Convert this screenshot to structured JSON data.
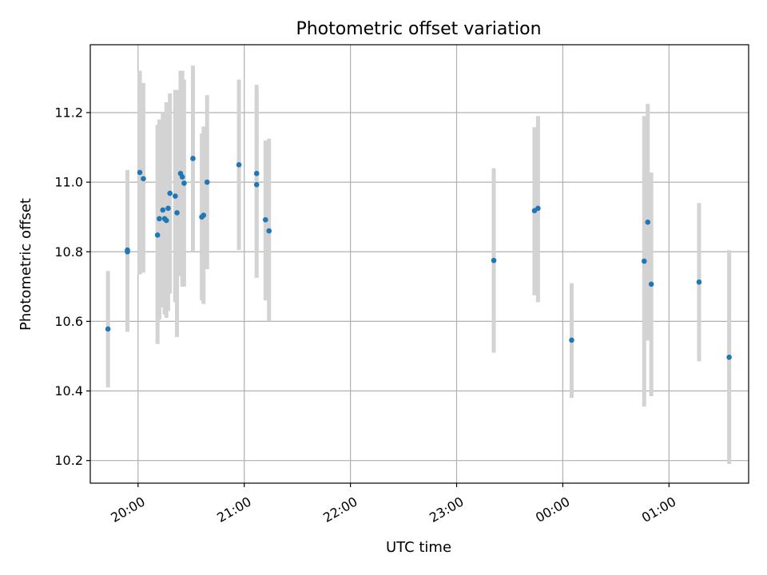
{
  "chart_data": {
    "type": "scatter",
    "title": "Photometric offset variation",
    "xlabel": "UTC time",
    "ylabel": "Photometric offset",
    "xlim": [
      "19:33",
      "01:45"
    ],
    "ylim": [
      10.135,
      11.395
    ],
    "x_ticks": [
      "20:00",
      "21:00",
      "22:00",
      "23:00",
      "00:00",
      "01:00"
    ],
    "y_ticks": [
      10.2,
      10.4,
      10.6,
      10.8,
      11.0,
      11.2
    ],
    "grid": true,
    "colors": {
      "point": "#1f77b4",
      "error_bar": "#d3d3d3"
    },
    "points": [
      {
        "x": "19:43",
        "y": 10.578,
        "lo": 10.41,
        "hi": 10.745
      },
      {
        "x": "19:54",
        "y": 10.8,
        "lo": 10.57,
        "hi": 11.03
      },
      {
        "x": "19:54",
        "y": 10.805,
        "lo": 10.58,
        "hi": 11.035
      },
      {
        "x": "20:01",
        "y": 11.028,
        "lo": 10.735,
        "hi": 11.32
      },
      {
        "x": "20:03",
        "y": 11.01,
        "lo": 10.74,
        "hi": 11.285
      },
      {
        "x": "20:11",
        "y": 10.848,
        "lo": 10.535,
        "hi": 11.165
      },
      {
        "x": "20:12",
        "y": 10.895,
        "lo": 10.605,
        "hi": 11.18
      },
      {
        "x": "20:14",
        "y": 10.92,
        "lo": 10.64,
        "hi": 11.2
      },
      {
        "x": "20:15",
        "y": 10.895,
        "lo": 10.62,
        "hi": 11.175
      },
      {
        "x": "20:16",
        "y": 10.89,
        "lo": 10.61,
        "hi": 11.23
      },
      {
        "x": "20:17",
        "y": 10.925,
        "lo": 10.63,
        "hi": 11.215
      },
      {
        "x": "20:18",
        "y": 10.968,
        "lo": 10.68,
        "hi": 11.255
      },
      {
        "x": "20:21",
        "y": 10.96,
        "lo": 10.655,
        "hi": 11.265
      },
      {
        "x": "20:22",
        "y": 10.912,
        "lo": 10.555,
        "hi": 11.265
      },
      {
        "x": "20:24",
        "y": 11.025,
        "lo": 10.73,
        "hi": 11.32
      },
      {
        "x": "20:25",
        "y": 11.015,
        "lo": 10.7,
        "hi": 11.32
      },
      {
        "x": "20:26",
        "y": 10.997,
        "lo": 10.7,
        "hi": 11.295
      },
      {
        "x": "20:31",
        "y": 11.068,
        "lo": 10.8,
        "hi": 11.335
      },
      {
        "x": "20:36",
        "y": 10.9,
        "lo": 10.66,
        "hi": 11.14
      },
      {
        "x": "20:37",
        "y": 10.905,
        "lo": 10.65,
        "hi": 11.16
      },
      {
        "x": "20:39",
        "y": 11.0,
        "lo": 10.75,
        "hi": 11.25
      },
      {
        "x": "20:57",
        "y": 11.05,
        "lo": 10.805,
        "hi": 11.295
      },
      {
        "x": "21:07",
        "y": 11.025,
        "lo": 10.8,
        "hi": 11.28
      },
      {
        "x": "21:07",
        "y": 10.993,
        "lo": 10.725,
        "hi": 11.26
      },
      {
        "x": "21:12",
        "y": 10.892,
        "lo": 10.66,
        "hi": 11.12
      },
      {
        "x": "21:14",
        "y": 10.86,
        "lo": 10.6,
        "hi": 11.125
      },
      {
        "x": "23:21",
        "y": 10.775,
        "lo": 10.51,
        "hi": 11.04
      },
      {
        "x": "23:44",
        "y": 10.918,
        "lo": 10.675,
        "hi": 11.158
      },
      {
        "x": "23:46",
        "y": 10.925,
        "lo": 10.655,
        "hi": 11.19
      },
      {
        "x": "00:05",
        "y": 10.546,
        "lo": 10.38,
        "hi": 10.71
      },
      {
        "x": "00:46",
        "y": 10.773,
        "lo": 10.355,
        "hi": 11.19
      },
      {
        "x": "00:48",
        "y": 10.885,
        "lo": 10.545,
        "hi": 11.225
      },
      {
        "x": "00:50",
        "y": 10.707,
        "lo": 10.385,
        "hi": 11.028
      },
      {
        "x": "01:17",
        "y": 10.713,
        "lo": 10.485,
        "hi": 10.94
      },
      {
        "x": "01:34",
        "y": 10.497,
        "lo": 10.19,
        "hi": 10.805
      }
    ]
  }
}
